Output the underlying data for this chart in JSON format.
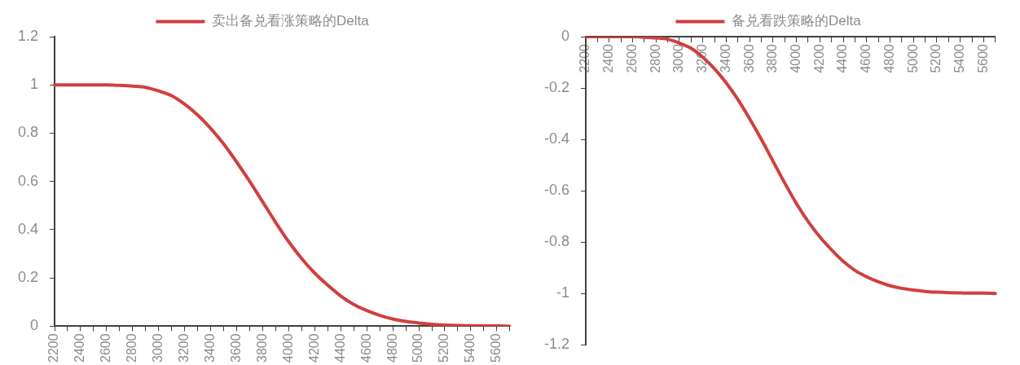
{
  "chart_data": [
    {
      "type": "line",
      "categories": [
        "2200",
        null,
        "2400",
        null,
        "2600",
        null,
        "2800",
        null,
        "3000",
        null,
        "3200",
        null,
        "3400",
        null,
        "3600",
        null,
        "3800",
        null,
        "4000",
        null,
        "4200",
        null,
        "4400",
        null,
        "4600",
        null,
        "4800",
        null,
        "5000",
        null,
        "5200",
        null,
        "5400",
        null,
        "5600",
        null
      ],
      "series": [
        {
          "name": "卖出备兑看涨策略的Delta",
          "color": "#d13f3f",
          "values": [
            1,
            1,
            1,
            1,
            1,
            0.998,
            0.995,
            0.99,
            0.975,
            0.955,
            0.92,
            0.875,
            0.82,
            0.755,
            0.68,
            0.6,
            0.515,
            0.43,
            0.35,
            0.28,
            0.22,
            0.17,
            0.125,
            0.09,
            0.065,
            0.045,
            0.03,
            0.02,
            0.013,
            0.008,
            0.005,
            0.003,
            0.002,
            0.001,
            0.001,
            0
          ]
        }
      ],
      "ylim": [
        0,
        1.2
      ],
      "yticks": [
        0,
        0.2,
        0.4,
        0.6,
        0.8,
        1,
        1.2
      ],
      "grid": false,
      "legend": "top",
      "marker": "none"
    },
    {
      "type": "line",
      "categories": [
        "2200",
        null,
        "2400",
        null,
        "2600",
        null,
        "2800",
        null,
        "3000",
        null,
        "3200",
        null,
        "3400",
        null,
        "3600",
        null,
        "3800",
        null,
        "4000",
        null,
        "4200",
        null,
        "4400",
        null,
        "4600",
        null,
        "4800",
        null,
        "5000",
        null,
        "5200",
        null,
        "5400",
        null,
        "5600",
        null
      ],
      "series": [
        {
          "name": "备兑看跌策略的Delta",
          "color": "#d13f3f",
          "values": [
            0,
            0,
            0,
            0,
            0,
            -0.002,
            -0.005,
            -0.01,
            -0.025,
            -0.045,
            -0.08,
            -0.125,
            -0.18,
            -0.245,
            -0.32,
            -0.4,
            -0.485,
            -0.57,
            -0.65,
            -0.72,
            -0.78,
            -0.83,
            -0.875,
            -0.91,
            -0.935,
            -0.955,
            -0.97,
            -0.98,
            -0.987,
            -0.992,
            -0.995,
            -0.997,
            -0.998,
            -0.999,
            -0.999,
            -1
          ]
        }
      ],
      "ylim": [
        -1.2,
        0
      ],
      "yticks": [
        -1.2,
        -1,
        -0.8,
        -0.6,
        -0.4,
        -0.2,
        0
      ],
      "grid": false,
      "legend": "top",
      "marker": "none"
    }
  ]
}
